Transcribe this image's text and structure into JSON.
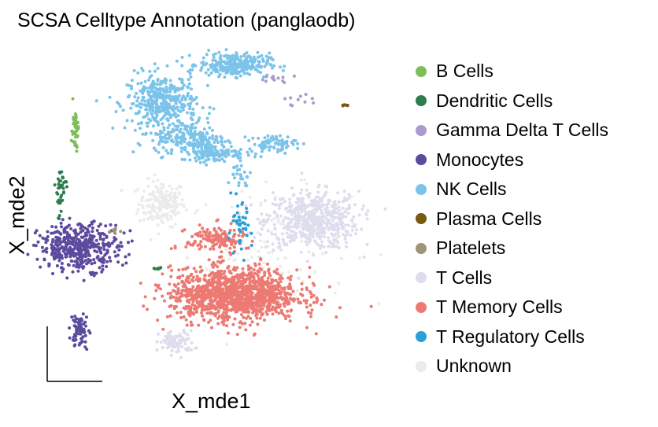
{
  "chart_data": {
    "type": "scatter",
    "title": "SCSA Celltype Annotation (panglaodb)",
    "xlabel": "X_mde1",
    "ylabel": "X_mde2",
    "grid": false,
    "legend_position": "right",
    "series": [
      {
        "name": "B Cells",
        "color": "#7dbd5a",
        "clusters": [
          {
            "cx": 0.04,
            "cy": 0.39,
            "rx": 0.006,
            "ry": 0.07,
            "n": 45
          }
        ]
      },
      {
        "name": "Dendritic Cells",
        "color": "#2e7d4f",
        "clusters": [
          {
            "cx": 0.01,
            "cy": 0.13,
            "rx": 0.01,
            "ry": 0.09,
            "n": 40
          },
          {
            "cx": 0.21,
            "cy": -0.19,
            "rx": 0.01,
            "ry": 0.005,
            "n": 6
          }
        ]
      },
      {
        "name": "Gamma Delta T Cells",
        "color": "#a99ad0",
        "clusters": [
          {
            "cx": 0.45,
            "cy": 0.6,
            "rx": 0.03,
            "ry": 0.015,
            "n": 12
          },
          {
            "cx": 0.5,
            "cy": 0.51,
            "rx": 0.04,
            "ry": 0.02,
            "n": 10
          }
        ]
      },
      {
        "name": "Monocytes",
        "color": "#5b4a9e",
        "clusters": [
          {
            "cx": 0.05,
            "cy": -0.1,
            "rx": 0.07,
            "ry": 0.08,
            "n": 420
          },
          {
            "cx": 0.05,
            "cy": -0.45,
            "rx": 0.015,
            "ry": 0.06,
            "n": 70
          }
        ]
      },
      {
        "name": "NK Cells",
        "color": "#7cc3ea",
        "clusters": [
          {
            "cx": 0.22,
            "cy": 0.5,
            "rx": 0.06,
            "ry": 0.1,
            "n": 400
          },
          {
            "cx": 0.37,
            "cy": 0.66,
            "rx": 0.06,
            "ry": 0.04,
            "n": 280
          },
          {
            "cx": 0.28,
            "cy": 0.35,
            "rx": 0.06,
            "ry": 0.06,
            "n": 200
          },
          {
            "cx": 0.33,
            "cy": 0.29,
            "rx": 0.05,
            "ry": 0.03,
            "n": 120
          },
          {
            "cx": 0.45,
            "cy": 0.33,
            "rx": 0.04,
            "ry": 0.03,
            "n": 70
          },
          {
            "cx": 0.38,
            "cy": 0.2,
            "rx": 0.02,
            "ry": 0.05,
            "n": 25
          }
        ]
      },
      {
        "name": "Plasma Cells",
        "color": "#7a5a10",
        "clusters": [
          {
            "cx": 0.6,
            "cy": 0.49,
            "rx": 0.008,
            "ry": 0.004,
            "n": 6
          }
        ]
      },
      {
        "name": "Platelets",
        "color": "#9e9578",
        "clusters": [
          {
            "cx": 0.12,
            "cy": -0.03,
            "rx": 0.012,
            "ry": 0.01,
            "n": 8
          }
        ]
      },
      {
        "name": "T Cells",
        "color": "#deddee",
        "clusters": [
          {
            "cx": 0.53,
            "cy": 0.01,
            "rx": 0.08,
            "ry": 0.1,
            "n": 550
          },
          {
            "cx": 0.25,
            "cy": -0.5,
            "rx": 0.03,
            "ry": 0.04,
            "n": 90
          }
        ]
      },
      {
        "name": "T Memory Cells",
        "color": "#ec7a72",
        "clusters": [
          {
            "cx": 0.37,
            "cy": -0.3,
            "rx": 0.11,
            "ry": 0.09,
            "n": 1300
          },
          {
            "cx": 0.33,
            "cy": -0.07,
            "rx": 0.05,
            "ry": 0.05,
            "n": 150
          }
        ]
      },
      {
        "name": "T Regulatory Cells",
        "color": "#2a9fd8",
        "clusters": [
          {
            "cx": 0.38,
            "cy": -0.03,
            "rx": 0.02,
            "ry": 0.09,
            "n": 45
          }
        ]
      },
      {
        "name": "Unknown",
        "color": "#ebebeb",
        "clusters": [
          {
            "cx": 0.22,
            "cy": 0.08,
            "rx": 0.04,
            "ry": 0.08,
            "n": 180
          },
          {
            "cx": 0.44,
            "cy": -0.1,
            "rx": 0.14,
            "ry": 0.2,
            "n": 120
          }
        ]
      }
    ]
  }
}
